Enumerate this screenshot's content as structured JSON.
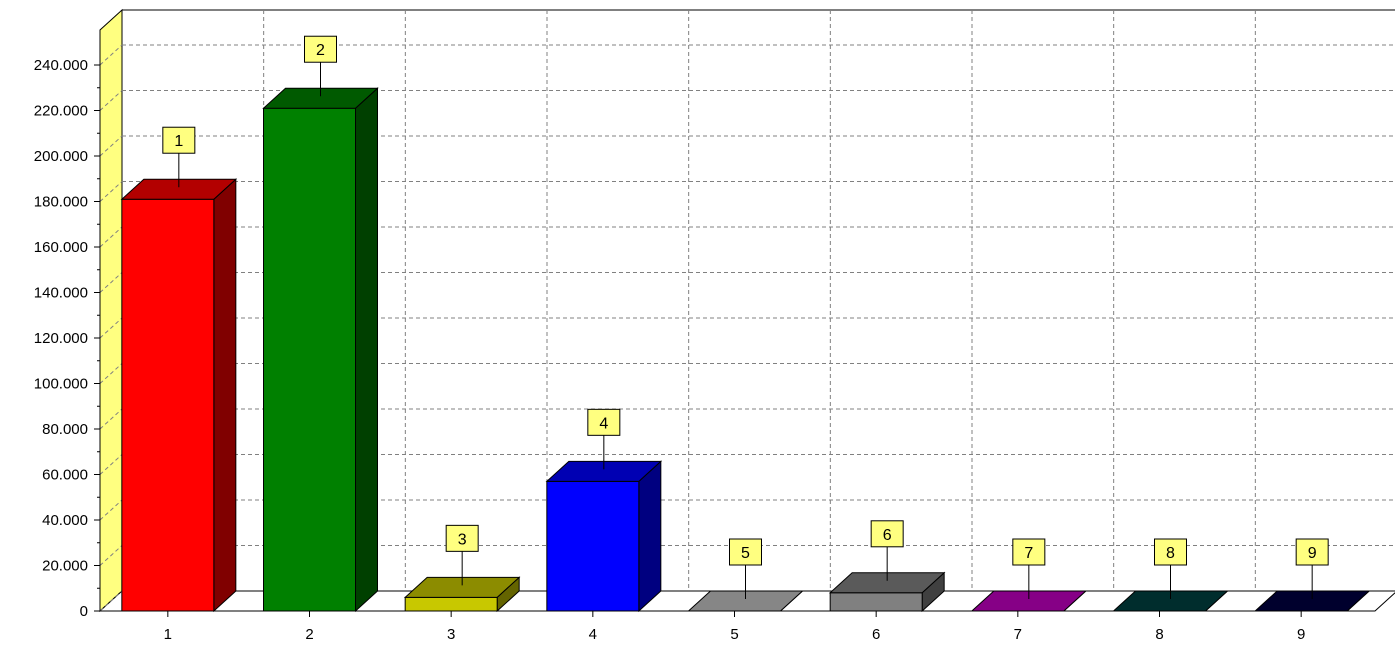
{
  "chart_data": {
    "type": "bar",
    "title": "",
    "xlabel": "",
    "ylabel": "",
    "categories": [
      "1",
      "2",
      "3",
      "4",
      "5",
      "6",
      "7",
      "8",
      "9"
    ],
    "values": [
      181000,
      221000,
      6000,
      57000,
      0,
      8000,
      0,
      0,
      0
    ],
    "data_labels": [
      "1",
      "2",
      "3",
      "4",
      "5",
      "6",
      "7",
      "8",
      "9"
    ],
    "ylim": [
      0,
      250000
    ],
    "y_ticks": [
      0,
      20000,
      40000,
      60000,
      80000,
      100000,
      120000,
      140000,
      160000,
      180000,
      200000,
      220000,
      240000
    ],
    "y_tick_labels": [
      "0",
      "20.000",
      "40.000",
      "60.000",
      "80.000",
      "100.000",
      "120.000",
      "140.000",
      "160.000",
      "180.000",
      "200.000",
      "220.000",
      "240.000"
    ],
    "grid": true,
    "style": "3d",
    "colors": [
      "#ff0000",
      "#008000",
      "#c8c800",
      "#0000ff",
      "#c0c0c0",
      "#808080",
      "#c000c0",
      "#004040",
      "#000040"
    ],
    "wall_color": "#ffff80",
    "label_box_color": "#ffff80"
  }
}
